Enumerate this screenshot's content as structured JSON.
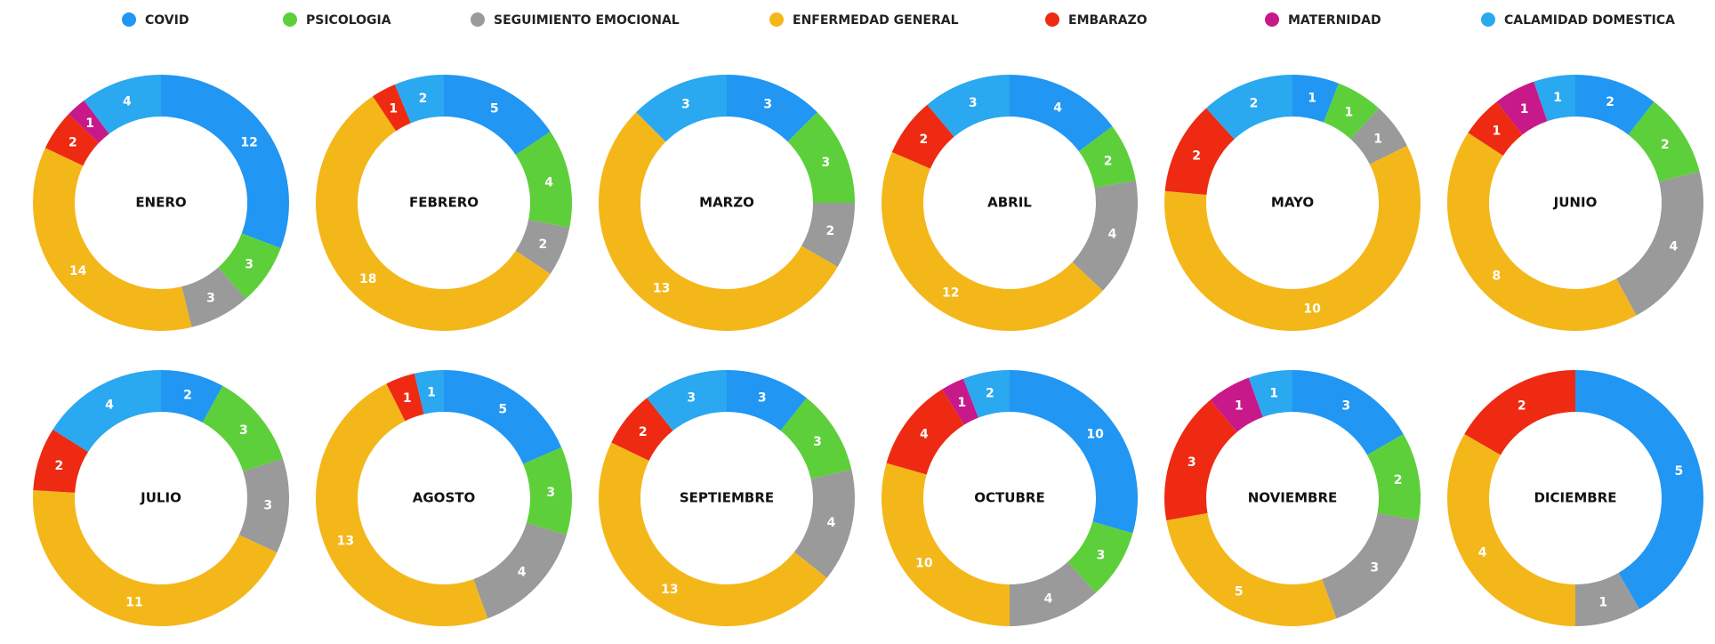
{
  "chart_data": {
    "type": "donut",
    "categories": [
      "ENERO",
      "FEBRERO",
      "MARZO",
      "ABRIL",
      "MAYO",
      "JUNIO",
      "JULIO",
      "AGOSTO",
      "SEPTIEMBRE",
      "OCTUBRE",
      "NOVIEMBRE",
      "DICIEMBRE"
    ],
    "series": [
      {
        "name": "COVID",
        "color": "#2196f3",
        "values": [
          12,
          5,
          3,
          4,
          1,
          2,
          2,
          5,
          3,
          10,
          3,
          5
        ]
      },
      {
        "name": "PSICOLOGIA",
        "color": "#5dcf3a",
        "values": [
          3,
          4,
          3,
          2,
          1,
          2,
          3,
          3,
          3,
          3,
          2,
          null
        ]
      },
      {
        "name": "SEGUIMIENTO EMOCIONAL",
        "color": "#9a9a9a",
        "values": [
          3,
          2,
          2,
          4,
          1,
          4,
          3,
          4,
          4,
          4,
          3,
          1
        ]
      },
      {
        "name": "ENFERMEDAD GENERAL",
        "color": "#f4b71a",
        "values": [
          14,
          18,
          13,
          12,
          10,
          8,
          11,
          13,
          13,
          10,
          5,
          4
        ]
      },
      {
        "name": "EMBARAZO",
        "color": "#ee2a12",
        "values": [
          2,
          1,
          null,
          2,
          2,
          1,
          2,
          1,
          2,
          4,
          3,
          2
        ]
      },
      {
        "name": "MATERNIDAD",
        "color": "#c8198a",
        "values": [
          1,
          null,
          null,
          null,
          null,
          1,
          null,
          null,
          null,
          1,
          1,
          null
        ]
      },
      {
        "name": "CALAMIDAD DOMESTICA",
        "color": "#2aa8f0",
        "values": [
          4,
          2,
          3,
          3,
          2,
          1,
          4,
          1,
          3,
          2,
          1,
          null
        ]
      }
    ],
    "legend": "top"
  }
}
